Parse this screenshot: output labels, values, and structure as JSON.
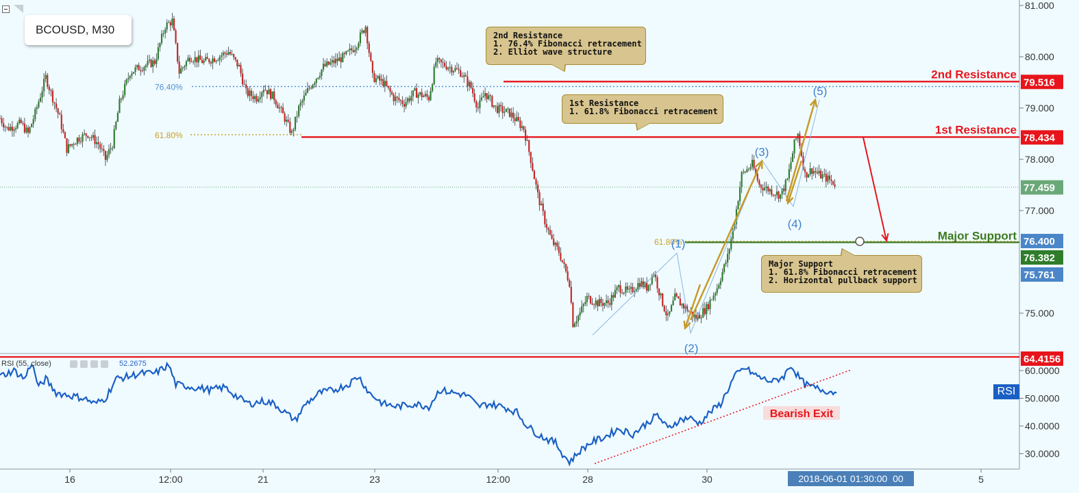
{
  "symbol": "BCOUSD, M30",
  "colors": {
    "background": "#f0fbff",
    "bull": "#2e7d32",
    "bear": "#c62828",
    "resistance": "#e8141b",
    "support": "#3b7a1e",
    "fib": "#c8a028",
    "fib_blue": "#4f8fd1",
    "wave_arrow": "#c69a2a",
    "rsi_line": "#1a5fc4",
    "axis_badge_blue": "#4a86c8",
    "axis_badge_green": "#2f7d2a",
    "axis_badge_current": "#6aa878"
  },
  "chart_data": [
    {
      "type": "candlestick",
      "title": "BCOUSD, M30",
      "ylim": [
        74.3,
        81.1
      ],
      "y_ticks": [
        "81.000",
        "80.000",
        "79.000",
        "78.000",
        "77.000",
        "75.000"
      ],
      "x_ticks": [
        "16",
        "12:00",
        "21",
        "23",
        "12:00",
        "28",
        "30",
        "5"
      ],
      "x_range_hours": [
        0,
        580
      ],
      "close_series_approx": [
        [
          0,
          78.8
        ],
        [
          4,
          78.6
        ],
        [
          12,
          78.7
        ],
        [
          16,
          78.5
        ],
        [
          20,
          78.9
        ],
        [
          26,
          79.6
        ],
        [
          30,
          79.2
        ],
        [
          34,
          78.8
        ],
        [
          38,
          78.2
        ],
        [
          44,
          78.4
        ],
        [
          50,
          78.5
        ],
        [
          56,
          78.3
        ],
        [
          60,
          78.0
        ],
        [
          64,
          78.3
        ],
        [
          68,
          79.1
        ],
        [
          74,
          79.7
        ],
        [
          80,
          79.8
        ],
        [
          88,
          79.9
        ],
        [
          94,
          80.6
        ],
        [
          98,
          80.7
        ],
        [
          102,
          79.7
        ],
        [
          108,
          80.0
        ],
        [
          116,
          79.9
        ],
        [
          124,
          80.0
        ],
        [
          130,
          80.1
        ],
        [
          136,
          79.8
        ],
        [
          140,
          79.3
        ],
        [
          146,
          79.2
        ],
        [
          150,
          79.4
        ],
        [
          156,
          79.2
        ],
        [
          162,
          78.8
        ],
        [
          166,
          78.5
        ],
        [
          170,
          79.0
        ],
        [
          176,
          79.4
        ],
        [
          184,
          79.8
        ],
        [
          190,
          79.9
        ],
        [
          196,
          80.0
        ],
        [
          202,
          80.2
        ],
        [
          208,
          80.6
        ],
        [
          212,
          79.6
        ],
        [
          218,
          79.5
        ],
        [
          224,
          79.2
        ],
        [
          230,
          79.1
        ],
        [
          236,
          79.3
        ],
        [
          244,
          79.2
        ],
        [
          248,
          79.9
        ],
        [
          256,
          79.8
        ],
        [
          262,
          79.7
        ],
        [
          268,
          79.4
        ],
        [
          272,
          79.0
        ],
        [
          276,
          79.3
        ],
        [
          282,
          79.0
        ],
        [
          290,
          78.9
        ],
        [
          298,
          78.6
        ],
        [
          302,
          78.0
        ],
        [
          306,
          77.3
        ],
        [
          310,
          76.8
        ],
        [
          314,
          76.4
        ],
        [
          318,
          76.2
        ],
        [
          324,
          75.6
        ],
        [
          326,
          74.8
        ],
        [
          330,
          75.0
        ],
        [
          334,
          75.3
        ],
        [
          340,
          75.2
        ],
        [
          346,
          75.2
        ],
        [
          352,
          75.5
        ],
        [
          358,
          75.4
        ],
        [
          364,
          75.6
        ],
        [
          368,
          75.5
        ],
        [
          372,
          75.8
        ],
        [
          376,
          75.3
        ],
        [
          380,
          74.9
        ],
        [
          384,
          75.3
        ],
        [
          390,
          75.1
        ],
        [
          396,
          74.9
        ],
        [
          402,
          75.1
        ],
        [
          408,
          75.5
        ],
        [
          414,
          76.1
        ],
        [
          418,
          76.8
        ],
        [
          422,
          77.7
        ],
        [
          428,
          77.9
        ],
        [
          432,
          77.5
        ],
        [
          438,
          77.4
        ],
        [
          444,
          77.3
        ],
        [
          448,
          77.6
        ],
        [
          452,
          78.3
        ],
        [
          454,
          78.5
        ],
        [
          458,
          77.7
        ],
        [
          462,
          77.8
        ],
        [
          466,
          77.7
        ],
        [
          472,
          77.6
        ],
        [
          476,
          77.5
        ]
      ]
    },
    {
      "type": "line",
      "title": "RSI (55, close)",
      "current_value": "52.2675",
      "ylim": [
        26,
        65
      ],
      "y_ticks": [
        "60.0000",
        "50.0000",
        "40.0000",
        "30.0000"
      ],
      "series": [
        {
          "values": [
            [
              0,
              58
            ],
            [
              8,
              60
            ],
            [
              14,
              57
            ],
            [
              18,
              63
            ],
            [
              22,
              54
            ],
            [
              26,
              57
            ],
            [
              32,
              52
            ],
            [
              40,
              51
            ],
            [
              48,
              50
            ],
            [
              54,
              48
            ],
            [
              60,
              50
            ],
            [
              66,
              57
            ],
            [
              74,
              58
            ],
            [
              80,
              59
            ],
            [
              88,
              59
            ],
            [
              96,
              62
            ],
            [
              100,
              55
            ],
            [
              110,
              54
            ],
            [
              120,
              53
            ],
            [
              128,
              54
            ],
            [
              136,
              50
            ],
            [
              142,
              48
            ],
            [
              150,
              49
            ],
            [
              156,
              48
            ],
            [
              162,
              45
            ],
            [
              168,
              42
            ],
            [
              174,
              48
            ],
            [
              182,
              52
            ],
            [
              190,
              53
            ],
            [
              198,
              55
            ],
            [
              204,
              58
            ],
            [
              210,
              52
            ],
            [
              218,
              48
            ],
            [
              226,
              47
            ],
            [
              236,
              48
            ],
            [
              244,
              47
            ],
            [
              250,
              53
            ],
            [
              258,
              52
            ],
            [
              266,
              51
            ],
            [
              272,
              47
            ],
            [
              278,
              48
            ],
            [
              286,
              47
            ],
            [
              294,
              45
            ],
            [
              300,
              40
            ],
            [
              306,
              37
            ],
            [
              312,
              35
            ],
            [
              316,
              34
            ],
            [
              320,
              30
            ],
            [
              324,
              27
            ],
            [
              330,
              31
            ],
            [
              336,
              34
            ],
            [
              344,
              36
            ],
            [
              352,
              39
            ],
            [
              360,
              37
            ],
            [
              368,
              41
            ],
            [
              374,
              44
            ],
            [
              380,
              39
            ],
            [
              386,
              42
            ],
            [
              392,
              43
            ],
            [
              398,
              41
            ],
            [
              404,
              45
            ],
            [
              410,
              48
            ],
            [
              414,
              53
            ],
            [
              418,
              58
            ],
            [
              424,
              61
            ],
            [
              428,
              59
            ],
            [
              434,
              57
            ],
            [
              440,
              56
            ],
            [
              446,
              58
            ],
            [
              450,
              62
            ],
            [
              454,
              58
            ],
            [
              458,
              55
            ],
            [
              462,
              54
            ],
            [
              468,
              53
            ],
            [
              476,
              52
            ]
          ]
        }
      ]
    }
  ],
  "price_labels": {
    "r2": "79.516",
    "r1": "78.434",
    "current": "77.459",
    "fib_level": "76.400",
    "major_support": "76.382",
    "low_badge": "75.761",
    "rsi_res": "64.4156"
  },
  "line_labels": {
    "r2": "2nd Resistance",
    "r1": "1st Resistance",
    "support": "Major Support",
    "fib764": "76.40%",
    "fib618": "61.80%",
    "fib618_small": "61.80%"
  },
  "waves": [
    "(1)",
    "(2)",
    "(3)",
    "(4)",
    "(5)"
  ],
  "callouts": {
    "r2": "2nd Resistance\n1. 76.4% Fibonacci retracement\n2. Elliot wave structure",
    "r1": "1st Resistance\n1. 61.8% Fibonacci retracement",
    "support": "Major Support\n1. 61.8% Fibonacci retracement\n2. Horizontal pullback support"
  },
  "rsi_panel": {
    "label": "RSI (55, close)",
    "value": "52.2675",
    "badge": "RSI",
    "annotation": "Bearish Exit"
  },
  "crosshair_date": "2018-06-01 01:30:00",
  "crosshair_suffix": "00"
}
